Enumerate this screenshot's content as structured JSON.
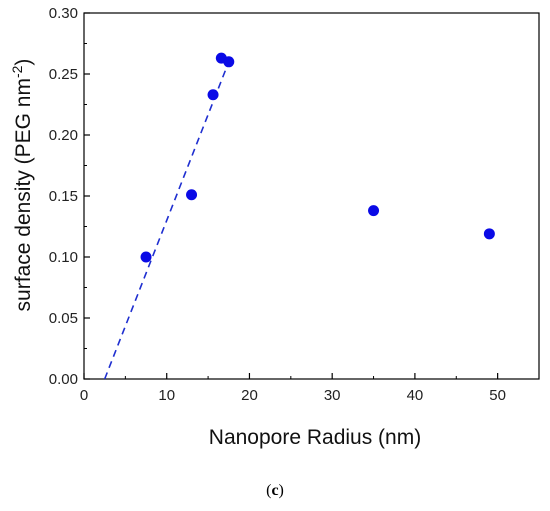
{
  "chart_data": {
    "type": "scatter",
    "xlabel": "Nanopore Radius (nm)",
    "ylabel": {
      "base": "surface density (PEG nm",
      "superscript": "-2",
      "close": ")"
    },
    "xlim": [
      0,
      55
    ],
    "ylim": [
      0,
      0.3
    ],
    "x_ticks": [
      0,
      10,
      20,
      30,
      40,
      50
    ],
    "x_tick_labels": [
      "0",
      "10",
      "20",
      "30",
      "40",
      "50"
    ],
    "y_ticks": [
      0.0,
      0.05,
      0.1,
      0.15,
      0.2,
      0.25,
      0.3
    ],
    "y_tick_labels": [
      "0.00",
      "0.05",
      "0.10",
      "0.15",
      "0.20",
      "0.25",
      "0.30"
    ],
    "grid": false,
    "series": [
      {
        "points": [
          {
            "x": 7.5,
            "y": 0.1
          },
          {
            "x": 13.0,
            "y": 0.151
          },
          {
            "x": 15.6,
            "y": 0.233
          },
          {
            "x": 16.6,
            "y": 0.263
          },
          {
            "x": 17.5,
            "y": 0.26
          },
          {
            "x": 35.0,
            "y": 0.138
          },
          {
            "x": 49.0,
            "y": 0.119
          }
        ],
        "color": "#0a0ae6"
      }
    ],
    "fit_line": {
      "style": "dashed",
      "color": "#1f2fd0",
      "start": {
        "x": 2.5,
        "y": 0.0
      },
      "end": {
        "x": 17.5,
        "y": 0.26
      }
    }
  },
  "caption": {
    "open": "(",
    "letter": "c",
    "close": ")"
  }
}
